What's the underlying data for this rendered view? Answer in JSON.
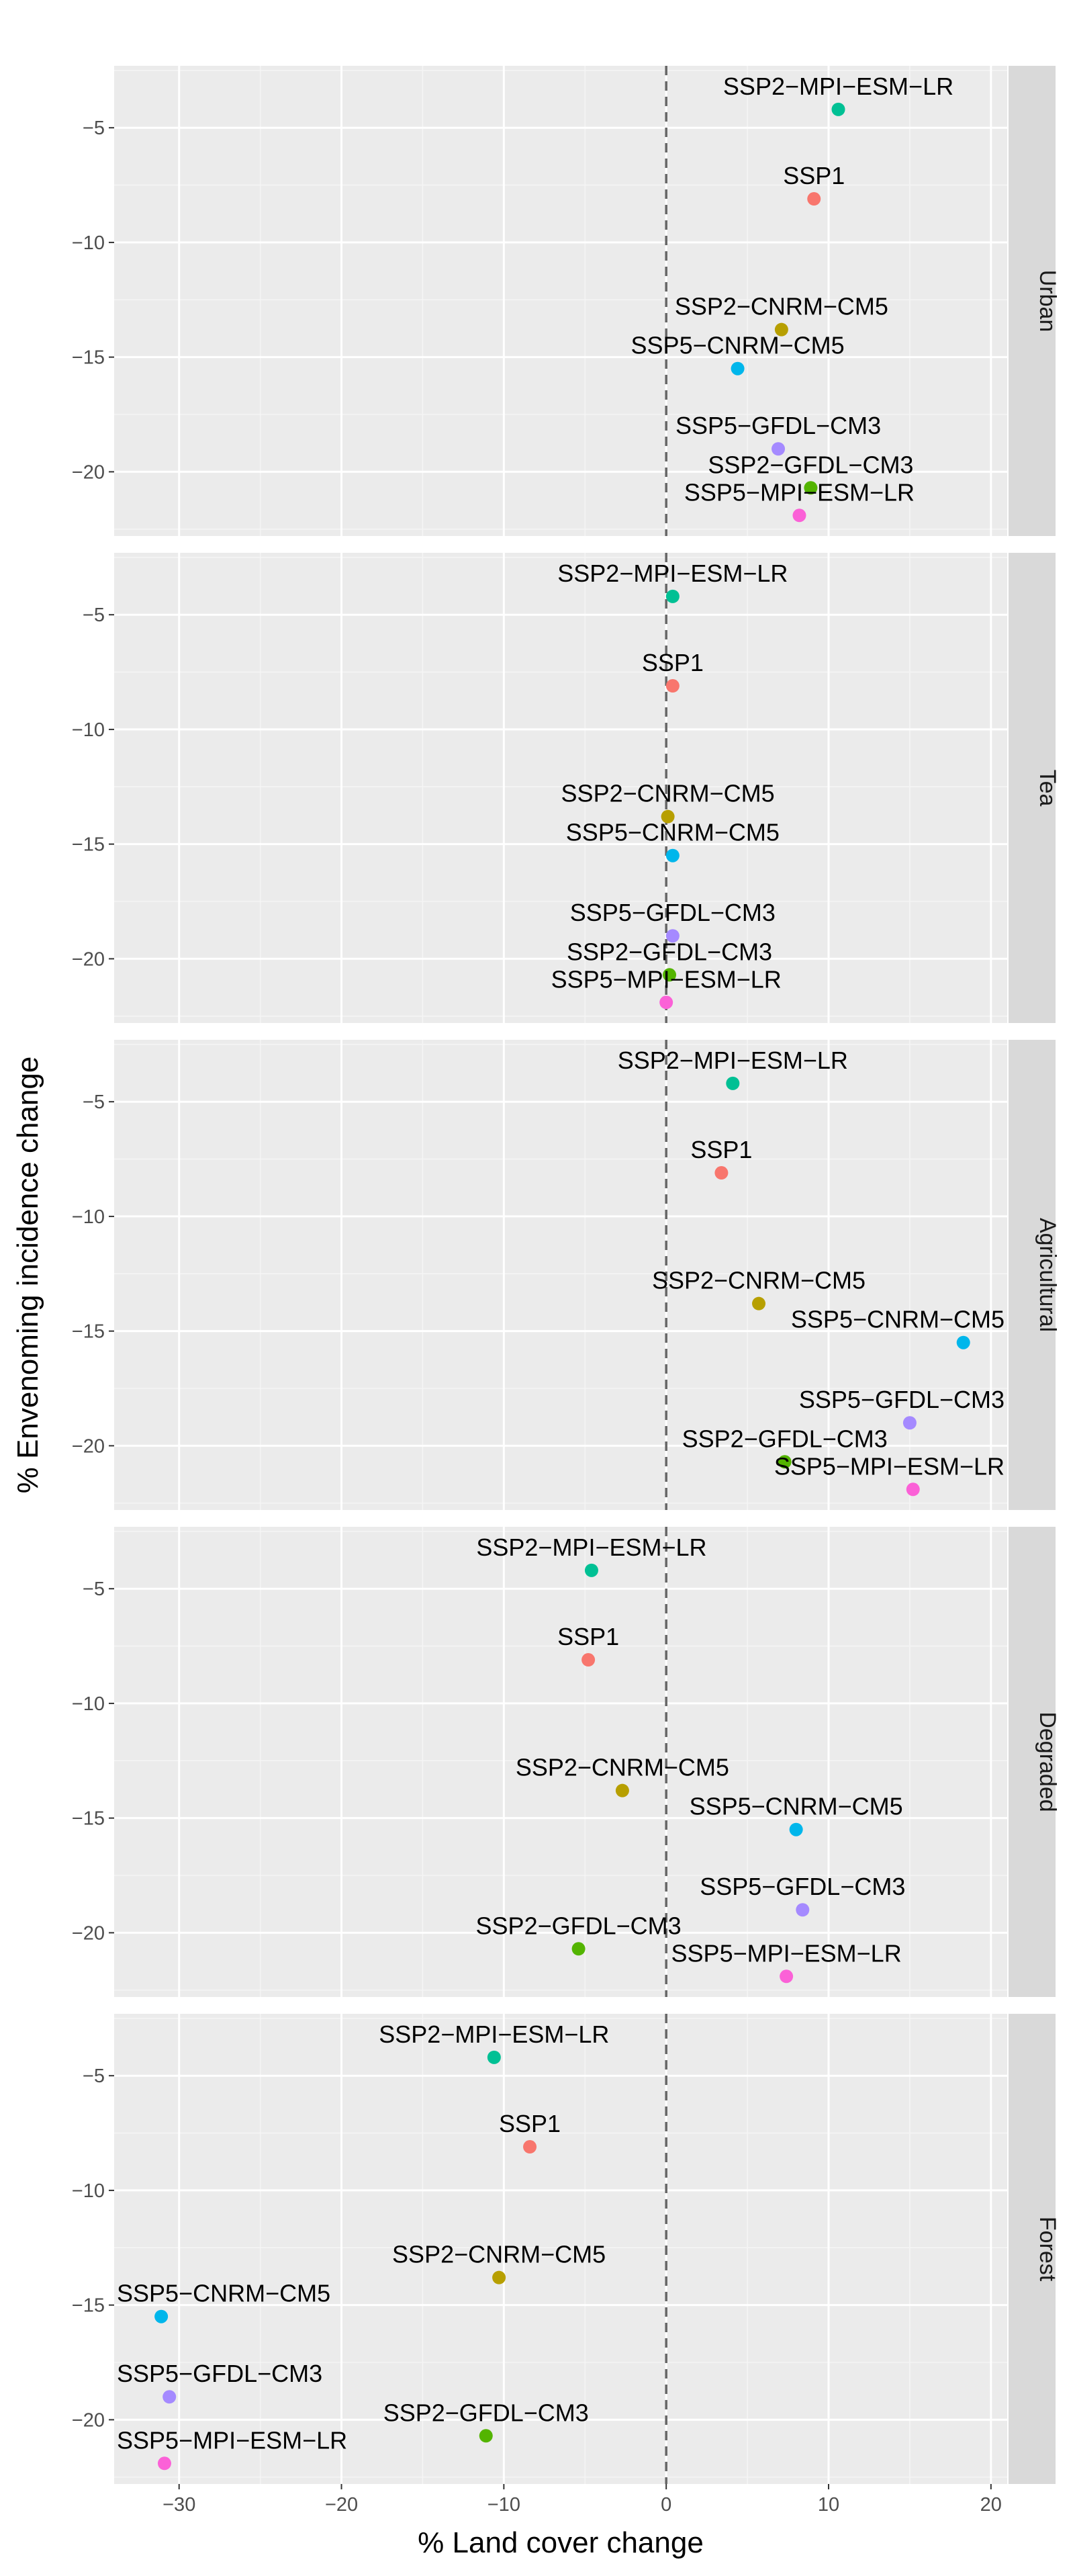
{
  "chart_data": {
    "type": "scatter",
    "xlabel": "% Land cover change",
    "ylabel": "% Envenoming incidence change",
    "xlim": [
      -34,
      21
    ],
    "ylim": [
      -22.8,
      -2.3
    ],
    "x_ticks": [
      -30,
      -20,
      -10,
      0,
      10,
      20
    ],
    "y_ticks": [
      -5,
      -10,
      -15,
      -20
    ],
    "reference_line": {
      "x": 0,
      "style": "dashed"
    },
    "grid": true,
    "legend": "none",
    "colors": {
      "SSP1": "#f8766d",
      "SSP2-CNRM-CM5": "#b79f00",
      "SSP2-GFDL-CM3": "#53b400",
      "SSP2-MPI-ESM-LR": "#00c094",
      "SSP5-CNRM-CM5": "#00b6eb",
      "SSP5-GFDL-CM3": "#a58aff",
      "SSP5-MPI-ESM-LR": "#fb61d7"
    },
    "facets": [
      {
        "label": "Urban",
        "points": [
          {
            "name": "SSP2-MPI-ESM-LR",
            "label": "SSP2−MPI−ESM−LR",
            "x": 10.6,
            "y": -4.2
          },
          {
            "name": "SSP1",
            "label": "SSP1",
            "x": 9.1,
            "y": -8.1
          },
          {
            "name": "SSP2-CNRM-CM5",
            "label": "SSP2−CNRM−CM5",
            "x": 7.1,
            "y": -13.8
          },
          {
            "name": "SSP5-CNRM-CM5",
            "label": "SSP5−CNRM−CM5",
            "x": 4.4,
            "y": -15.5
          },
          {
            "name": "SSP5-GFDL-CM3",
            "label": "SSP5−GFDL−CM3",
            "x": 6.9,
            "y": -19.0
          },
          {
            "name": "SSP2-GFDL-CM3",
            "label": "SSP2−GFDL−CM3",
            "x": 8.9,
            "y": -20.7
          },
          {
            "name": "SSP5-MPI-ESM-LR",
            "label": "SSP5−MPI−ESM−LR",
            "x": 8.2,
            "y": -21.9
          }
        ]
      },
      {
        "label": "Tea",
        "points": [
          {
            "name": "SSP2-MPI-ESM-LR",
            "label": "SSP2−MPI−ESM−LR",
            "x": 0.4,
            "y": -4.2
          },
          {
            "name": "SSP1",
            "label": "SSP1",
            "x": 0.4,
            "y": -8.1
          },
          {
            "name": "SSP2-CNRM-CM5",
            "label": "SSP2−CNRM−CM5",
            "x": 0.1,
            "y": -13.8
          },
          {
            "name": "SSP5-CNRM-CM5",
            "label": "SSP5−CNRM−CM5",
            "x": 0.4,
            "y": -15.5
          },
          {
            "name": "SSP5-GFDL-CM3",
            "label": "SSP5−GFDL−CM3",
            "x": 0.4,
            "y": -19.0
          },
          {
            "name": "SSP2-GFDL-CM3",
            "label": "SSP2−GFDL−CM3",
            "x": 0.2,
            "y": -20.7
          },
          {
            "name": "SSP5-MPI-ESM-LR",
            "label": "SSP5−MPI−ESM−LR",
            "x": 0.0,
            "y": -21.9
          }
        ]
      },
      {
        "label": "Agricultural",
        "points": [
          {
            "name": "SSP2-MPI-ESM-LR",
            "label": "SSP2−MPI−ESM−LR",
            "x": 4.1,
            "y": -4.2
          },
          {
            "name": "SSP1",
            "label": "SSP1",
            "x": 3.4,
            "y": -8.1
          },
          {
            "name": "SSP2-CNRM-CM5",
            "label": "SSP2−CNRM−CM5",
            "x": 5.7,
            "y": -13.8
          },
          {
            "name": "SSP5-CNRM-CM5",
            "label": "SSP5−CNRM−CM5",
            "x": 18.3,
            "y": -15.5
          },
          {
            "name": "SSP5-GFDL-CM3",
            "label": "SSP5−GFDL−CM3",
            "x": 15.0,
            "y": -19.0
          },
          {
            "name": "SSP2-GFDL-CM3",
            "label": "SSP2−GFDL−CM3",
            "x": 7.3,
            "y": -20.7
          },
          {
            "name": "SSP5-MPI-ESM-LR",
            "label": "SSP5−MPI−ESM−LR",
            "x": 15.2,
            "y": -21.9
          }
        ]
      },
      {
        "label": "Degraded",
        "points": [
          {
            "name": "SSP2-MPI-ESM-LR",
            "label": "SSP2−MPI−ESM−LR",
            "x": -4.6,
            "y": -4.2
          },
          {
            "name": "SSP1",
            "label": "SSP1",
            "x": -4.8,
            "y": -8.1
          },
          {
            "name": "SSP2-CNRM-CM5",
            "label": "SSP2−CNRM−CM5",
            "x": -2.7,
            "y": -13.8
          },
          {
            "name": "SSP5-CNRM-CM5",
            "label": "SSP5−CNRM−CM5",
            "x": 8.0,
            "y": -15.5
          },
          {
            "name": "SSP5-GFDL-CM3",
            "label": "SSP5−GFDL−CM3",
            "x": 8.4,
            "y": -19.0
          },
          {
            "name": "SSP2-GFDL-CM3",
            "label": "SSP2−GFDL−CM3",
            "x": -5.4,
            "y": -20.7
          },
          {
            "name": "SSP5-MPI-ESM-LR",
            "label": "SSP5−MPI−ESM−LR",
            "x": 7.4,
            "y": -21.9
          }
        ]
      },
      {
        "label": "Forest",
        "points": [
          {
            "name": "SSP2-MPI-ESM-LR",
            "label": "SSP2−MPI−ESM−LR",
            "x": -10.6,
            "y": -4.2
          },
          {
            "name": "SSP1",
            "label": "SSP1",
            "x": -8.4,
            "y": -8.1
          },
          {
            "name": "SSP2-CNRM-CM5",
            "label": "SSP2−CNRM−CM5",
            "x": -10.3,
            "y": -13.8
          },
          {
            "name": "SSP5-CNRM-CM5",
            "label": "SSP5−CNRM−CM5",
            "x": -31.1,
            "y": -15.5
          },
          {
            "name": "SSP5-GFDL-CM3",
            "label": "SSP5−GFDL−CM3",
            "x": -30.6,
            "y": -19.0
          },
          {
            "name": "SSP2-GFDL-CM3",
            "label": "SSP2−GFDL−CM3",
            "x": -11.1,
            "y": -20.7
          },
          {
            "name": "SSP5-MPI-ESM-LR",
            "label": "SSP5−MPI−ESM−LR",
            "x": -30.9,
            "y": -21.9
          }
        ]
      }
    ]
  }
}
